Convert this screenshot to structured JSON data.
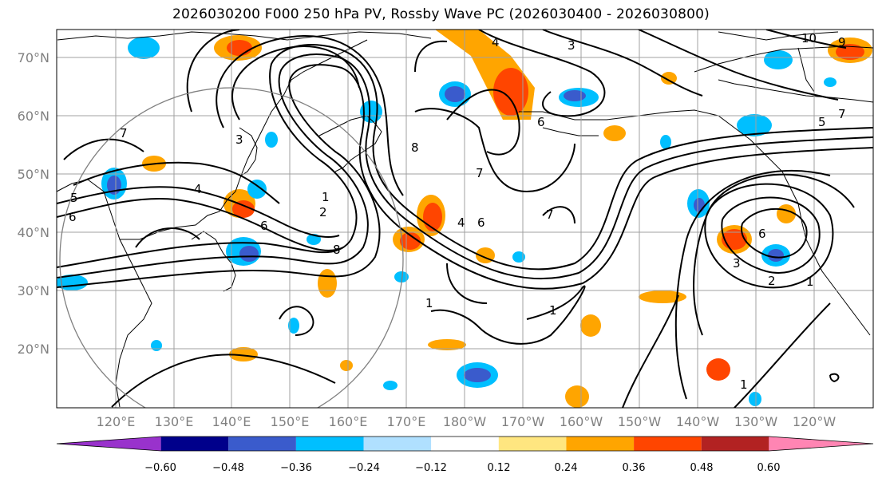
{
  "title": "2026030200 F000 250 hPa PV, Rossby Wave PC (2026030400 - 2026030800)",
  "latitude_labels": [
    "70°N",
    "60°N",
    "50°N",
    "40°N",
    "30°N",
    "20°N"
  ],
  "longitude_labels": [
    "120°E",
    "130°E",
    "140°E",
    "150°E",
    "160°E",
    "170°E",
    "180°W",
    "170°W",
    "160°W",
    "150°W",
    "140°W",
    "130°W",
    "120°W"
  ],
  "colorbar": {
    "ticks": [
      "−0.60",
      "−0.48",
      "−0.36",
      "−0.24",
      "−0.12",
      "0.12",
      "0.24",
      "0.36",
      "0.48",
      "0.60"
    ],
    "colors": [
      "#9932CC",
      "#00008B",
      "#3A5BCC",
      "#00BFFF",
      "#B0E0FF",
      "#FFFFFF",
      "#FFE680",
      "#FFA500",
      "#FF4500",
      "#B22222",
      "#FF85B3"
    ]
  },
  "contour_labels": [
    "7",
    "5",
    "6",
    "4",
    "1",
    "2",
    "3",
    "6",
    "8",
    "1",
    "4",
    "6",
    "7",
    "4",
    "6",
    "7",
    "3",
    "1",
    "8",
    "10",
    "9",
    "5",
    "7",
    "6",
    "3",
    "2",
    "1",
    "1"
  ],
  "colors": {
    "contour": "#000000",
    "grid": "#a0a0a0",
    "coast": "#000000",
    "circle": "#808080"
  }
}
